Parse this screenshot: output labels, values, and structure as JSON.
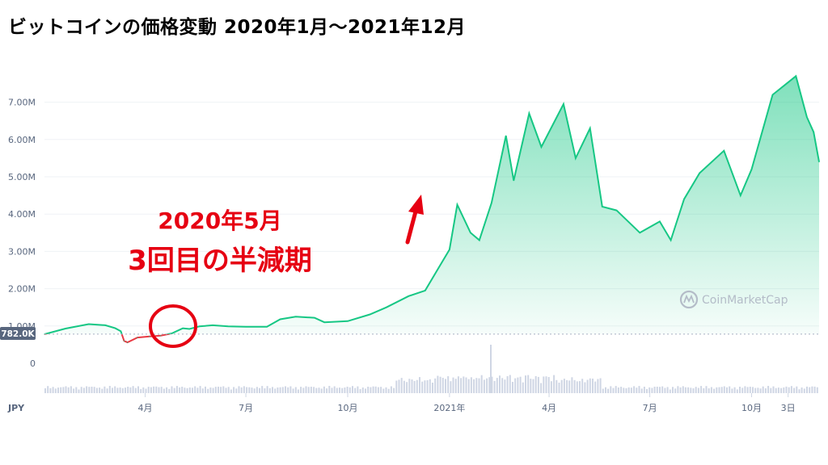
{
  "title": "ビットコインの価格変動 2020年1月～2021年12月",
  "annotation": {
    "line1": "2020年5月",
    "line2": "3回目の半減期"
  },
  "watermark": "CoinMarketCap",
  "current_price_label": "782.0K",
  "currency_label": "JPY",
  "colors": {
    "line_up": "#16c784",
    "line_down": "#ea3943",
    "area_fill": "#16c784",
    "annotation": "#e60012",
    "volume": "#cfd6e4",
    "grid": "#eff2f5"
  },
  "chart_data": {
    "type": "area",
    "title": "ビットコインの価格変動 2020年1月～2021年12月",
    "currency": "JPY",
    "y_ticks": [
      "0",
      "1.00M",
      "2.00M",
      "3.00M",
      "4.00M",
      "5.00M",
      "6.00M",
      "7.00M"
    ],
    "y_tick_values": [
      0,
      1000000,
      2000000,
      3000000,
      4000000,
      5000000,
      6000000,
      7000000
    ],
    "x_ticks": [
      {
        "label": "4月",
        "date": "2020-04-01"
      },
      {
        "label": "7月",
        "date": "2020-07-01"
      },
      {
        "label": "10月",
        "date": "2020-10-01"
      },
      {
        "label": "2021年",
        "date": "2021-01-01"
      },
      {
        "label": "4月",
        "date": "2021-04-01"
      },
      {
        "label": "7月",
        "date": "2021-07-01"
      },
      {
        "label": "10月",
        "date": "2021-10-01"
      },
      {
        "label": "3日",
        "date": "2021-11-03"
      }
    ],
    "x_range": [
      "2020-01-01",
      "2021-12-01"
    ],
    "reference_value": 782000,
    "grid": true,
    "series": [
      {
        "values": [
          [
            "2020-01-01",
            780000
          ],
          [
            "2020-01-20",
            930000
          ],
          [
            "2020-02-10",
            1050000
          ],
          [
            "2020-02-25",
            1020000
          ],
          [
            "2020-03-05",
            940000
          ],
          [
            "2020-03-10",
            860000
          ],
          [
            "2020-03-13",
            600000
          ],
          [
            "2020-03-16",
            560000
          ],
          [
            "2020-03-25",
            690000
          ],
          [
            "2020-04-05",
            720000
          ],
          [
            "2020-04-15",
            740000
          ],
          [
            "2020-04-25",
            800000
          ],
          [
            "2020-05-05",
            940000
          ],
          [
            "2020-05-11",
            920000
          ],
          [
            "2020-05-20",
            990000
          ],
          [
            "2020-06-01",
            1020000
          ],
          [
            "2020-06-15",
            990000
          ],
          [
            "2020-07-01",
            980000
          ],
          [
            "2020-07-20",
            980000
          ],
          [
            "2020-08-01",
            1180000
          ],
          [
            "2020-08-15",
            1250000
          ],
          [
            "2020-09-01",
            1220000
          ],
          [
            "2020-09-10",
            1100000
          ],
          [
            "2020-10-01",
            1130000
          ],
          [
            "2020-10-21",
            1310000
          ],
          [
            "2020-11-05",
            1500000
          ],
          [
            "2020-11-25",
            1800000
          ],
          [
            "2020-12-10",
            1950000
          ],
          [
            "2020-12-20",
            2450000
          ],
          [
            "2021-01-01",
            3050000
          ],
          [
            "2021-01-08",
            4250000
          ],
          [
            "2021-01-20",
            3500000
          ],
          [
            "2021-01-28",
            3300000
          ],
          [
            "2021-02-08",
            4300000
          ],
          [
            "2021-02-21",
            6100000
          ],
          [
            "2021-02-28",
            4900000
          ],
          [
            "2021-03-14",
            6700000
          ],
          [
            "2021-03-25",
            5800000
          ],
          [
            "2021-04-14",
            6950000
          ],
          [
            "2021-04-25",
            5500000
          ],
          [
            "2021-05-08",
            6300000
          ],
          [
            "2021-05-19",
            4200000
          ],
          [
            "2021-06-01",
            4100000
          ],
          [
            "2021-06-22",
            3500000
          ],
          [
            "2021-07-10",
            3800000
          ],
          [
            "2021-07-20",
            3300000
          ],
          [
            "2021-08-01",
            4400000
          ],
          [
            "2021-08-15",
            5100000
          ],
          [
            "2021-09-06",
            5700000
          ],
          [
            "2021-09-21",
            4500000
          ],
          [
            "2021-10-01",
            5200000
          ],
          [
            "2021-10-20",
            7200000
          ],
          [
            "2021-11-10",
            7700000
          ],
          [
            "2021-11-20",
            6600000
          ],
          [
            "2021-11-26",
            6200000
          ],
          [
            "2021-12-01",
            5400000
          ]
        ]
      }
    ]
  }
}
